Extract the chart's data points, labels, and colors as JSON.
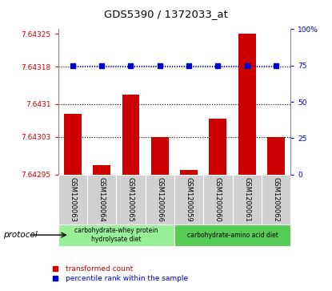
{
  "title": "GDS5390 / 1372033_at",
  "samples": [
    "GSM1200063",
    "GSM1200064",
    "GSM1200065",
    "GSM1200066",
    "GSM1200059",
    "GSM1200060",
    "GSM1200061",
    "GSM1200062"
  ],
  "red_values": [
    7.64308,
    7.64297,
    7.64312,
    7.64303,
    7.64296,
    7.64307,
    7.64325,
    7.64303
  ],
  "blue_values": [
    75,
    75,
    75,
    75,
    75,
    75,
    75,
    75
  ],
  "ylim_left": [
    7.64295,
    7.64326
  ],
  "ylim_right": [
    0,
    100
  ],
  "yticks_left": [
    7.64295,
    7.64303,
    7.6431,
    7.64318,
    7.64325
  ],
  "ytick_labels_left": [
    "7.64295",
    "7.64303",
    "7.6431",
    "7.64318",
    "7.64325"
  ],
  "yticks_right": [
    0,
    25,
    50,
    75,
    100
  ],
  "ytick_labels_right": [
    "0",
    "25",
    "50",
    "75",
    "100%"
  ],
  "hlines": [
    7.64303,
    7.6431,
    7.64318
  ],
  "groups": [
    {
      "label": "carbohydrate-whey protein\nhydrolysate diet",
      "start": 0,
      "end": 3,
      "color": "#99ee99"
    },
    {
      "label": "carbohydrate-amino acid diet",
      "start": 4,
      "end": 7,
      "color": "#55cc55"
    }
  ],
  "bar_color": "#cc0000",
  "dot_color": "#0000cc",
  "bar_width": 0.6,
  "protocol_label": "protocol",
  "legend_red": "transformed count",
  "legend_blue": "percentile rank within the sample",
  "sample_bg": "#d0d0d0",
  "plot_bg": "#ffffff",
  "left_color": "#cc0000",
  "right_color": "#0000cc"
}
